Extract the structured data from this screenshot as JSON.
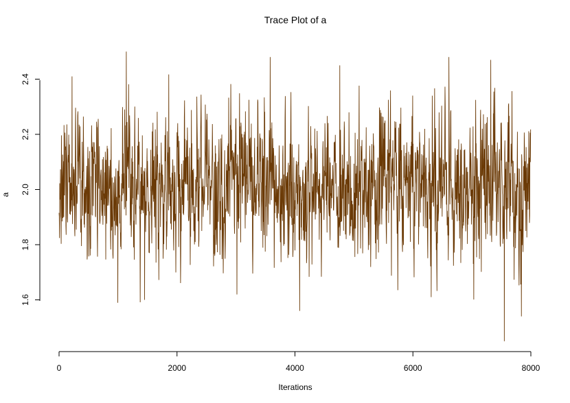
{
  "chart_data": {
    "type": "line",
    "title": "Trace Plot of a",
    "xlabel": "Iterations",
    "ylabel": "a",
    "xlim": [
      0,
      8000
    ],
    "ylim": [
      1.45,
      2.5
    ],
    "x_ticks": [
      0,
      2000,
      4000,
      6000,
      8000
    ],
    "x_tick_labels": [
      "0",
      "2000",
      "4000",
      "6000",
      "8000"
    ],
    "y_ticks": [
      1.6,
      1.8,
      2.0,
      2.2,
      2.4
    ],
    "y_tick_labels": [
      "1.6",
      "1.8",
      "2.0",
      "2.2",
      "2.4"
    ],
    "grid": false,
    "legend": "none",
    "line_color": "#6b3a06",
    "series": [
      {
        "n_iterations": 8000,
        "mean": 2.0,
        "sd": 0.13,
        "min": 1.45,
        "max": 2.5,
        "notable_points": [
          {
            "x": 1140,
            "y": 2.5
          },
          {
            "x": 220,
            "y": 2.41
          },
          {
            "x": 3580,
            "y": 2.48
          },
          {
            "x": 4760,
            "y": 2.45
          },
          {
            "x": 6610,
            "y": 2.48
          },
          {
            "x": 7320,
            "y": 2.47
          },
          {
            "x": 4080,
            "y": 1.56
          },
          {
            "x": 1450,
            "y": 1.6
          },
          {
            "x": 6310,
            "y": 1.61
          },
          {
            "x": 7550,
            "y": 1.45
          },
          {
            "x": 7840,
            "y": 1.54
          }
        ]
      }
    ]
  }
}
